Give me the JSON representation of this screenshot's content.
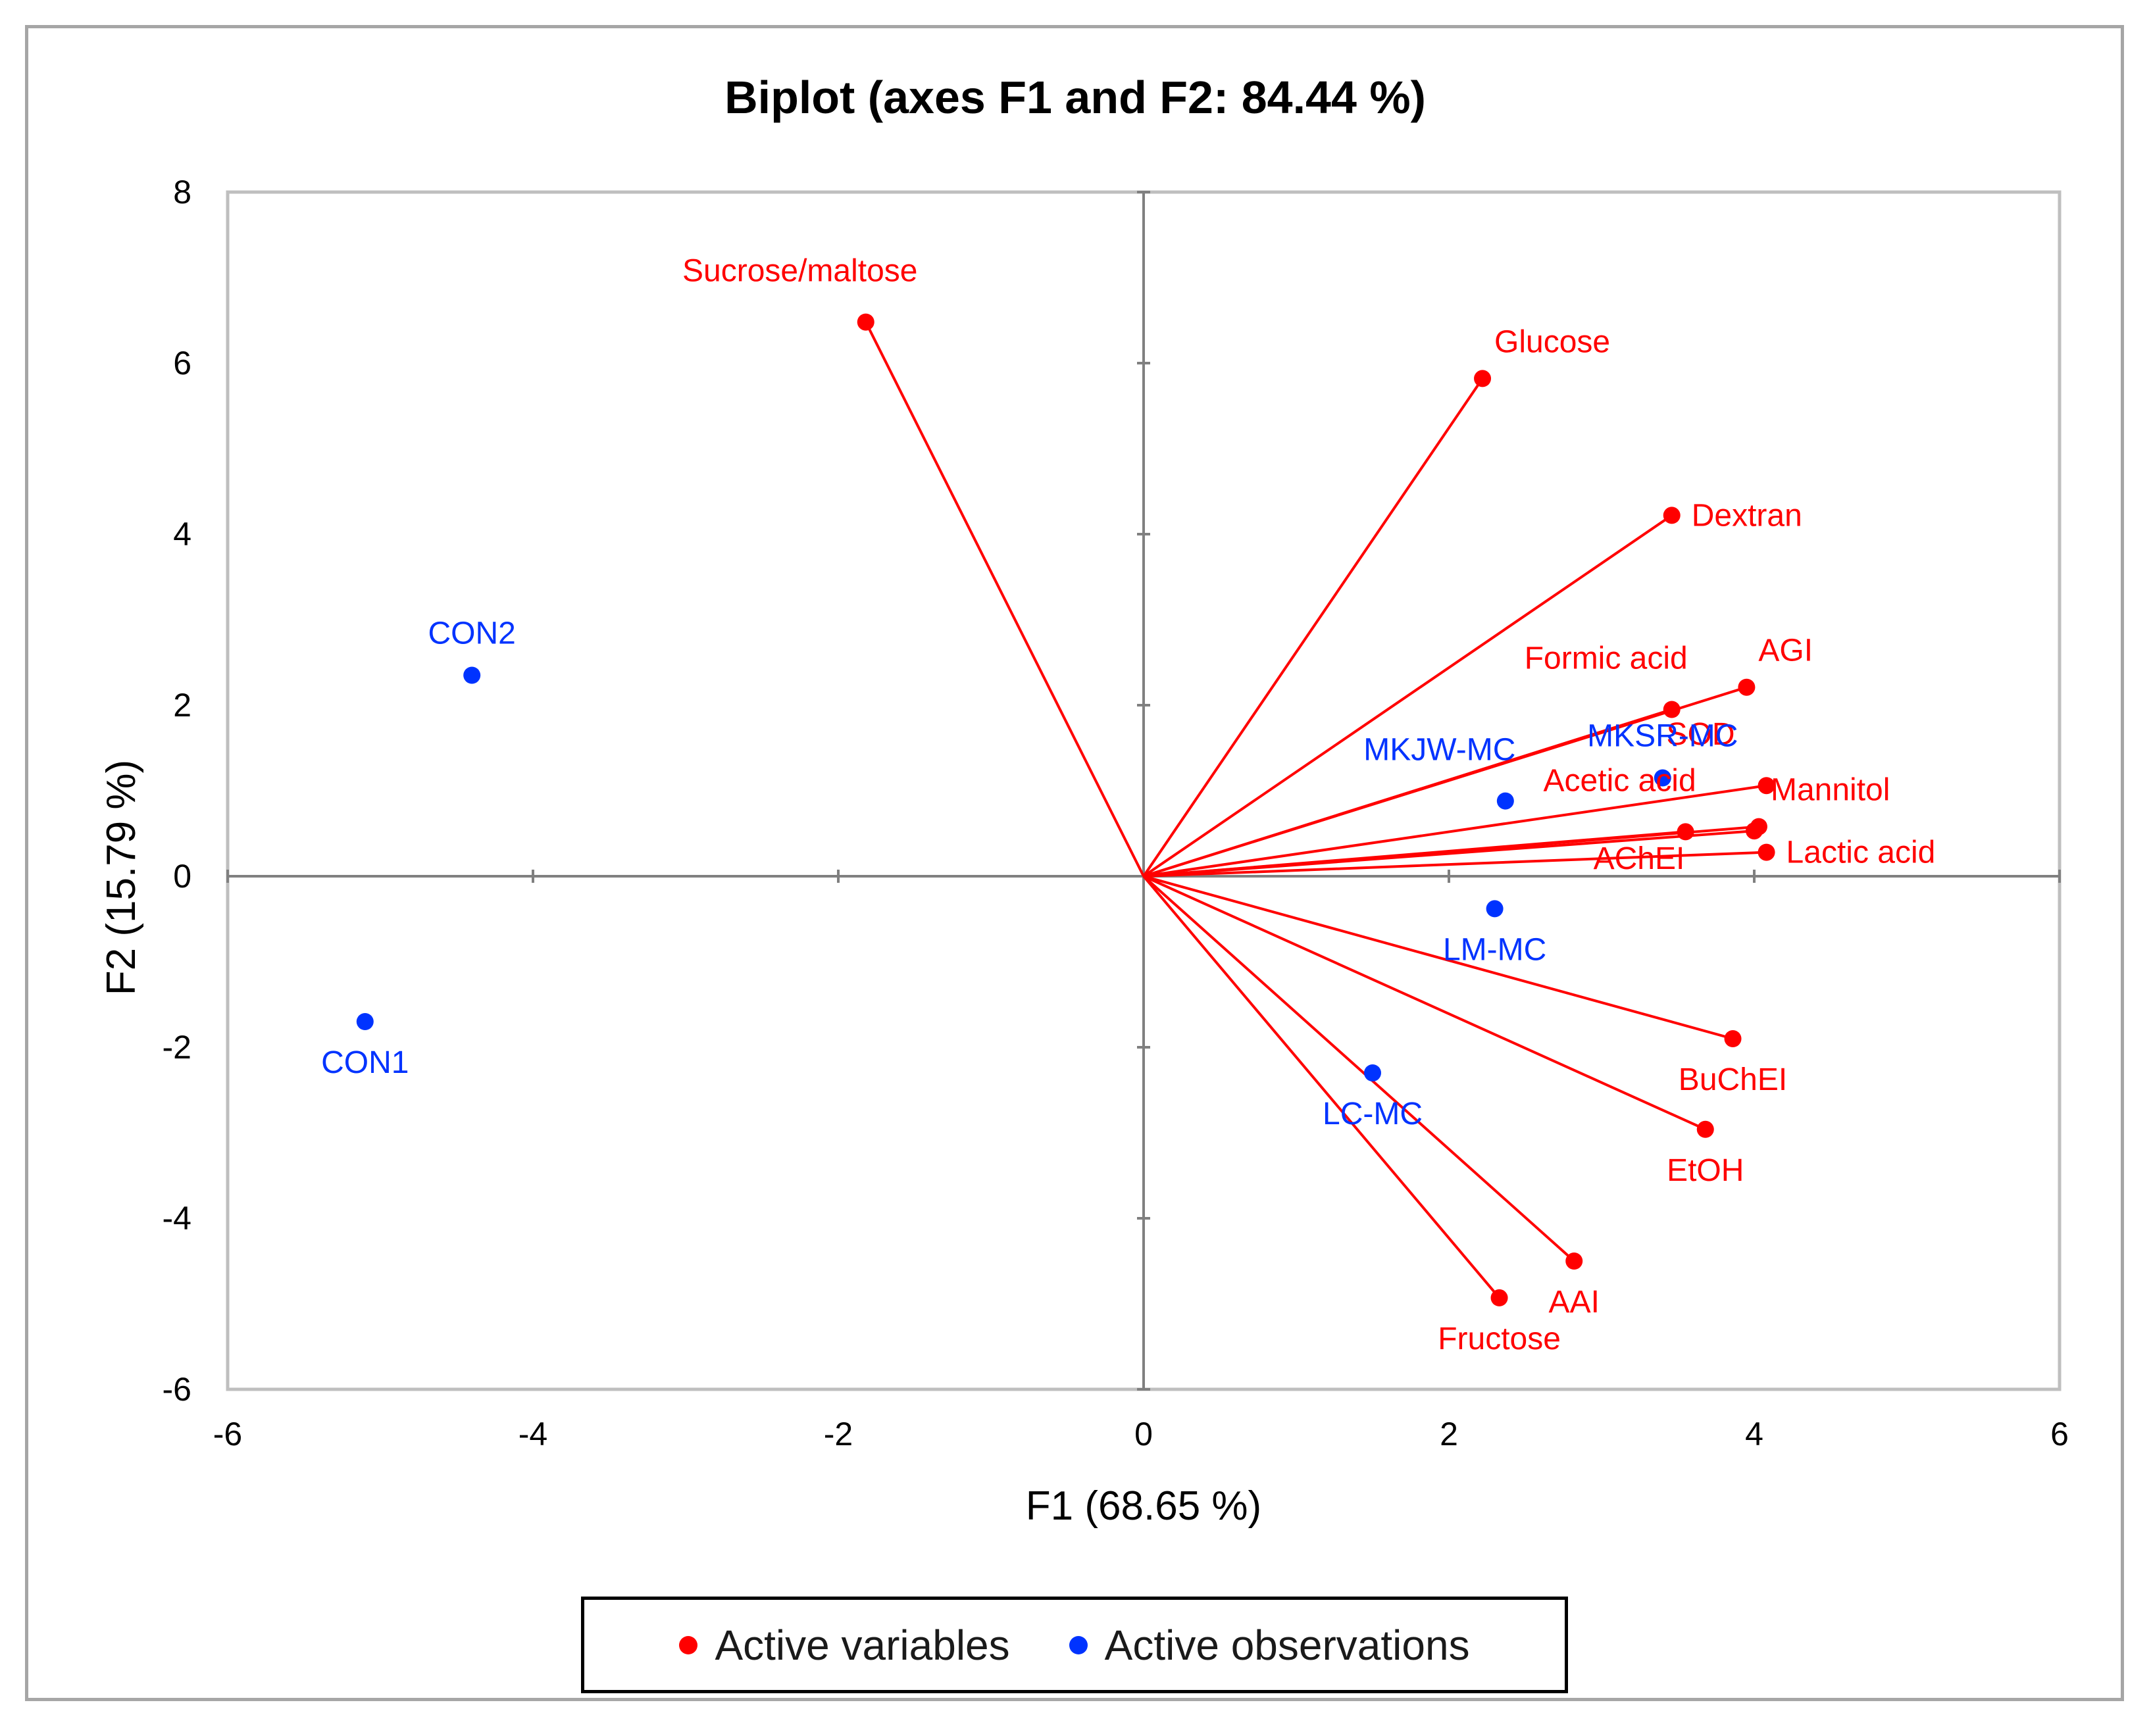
{
  "chart_data": {
    "type": "scatter",
    "title": "Biplot (axes F1 and F2: 84.44 %)",
    "xlabel": "F1 (68.65 %)",
    "ylabel": "F2 (15.79 %)",
    "xlim": [
      -6,
      6
    ],
    "ylim": [
      -6,
      8
    ],
    "xticks": [
      -6,
      -4,
      -2,
      0,
      2,
      4,
      6
    ],
    "yticks": [
      -6,
      -4,
      -2,
      0,
      2,
      4,
      6,
      8
    ],
    "grid": false,
    "series": [
      {
        "name": "Active variables",
        "color": "#ff0000",
        "vectors_from_origin": true,
        "points": [
          {
            "label": "Sucrose/maltose",
            "x": -1.82,
            "y": 6.48,
            "label_pos": "upper-left"
          },
          {
            "label": "Glucose",
            "x": 2.22,
            "y": 5.82,
            "label_pos": "upper-right"
          },
          {
            "label": "Dextran",
            "x": 3.46,
            "y": 4.22,
            "label_pos": "right"
          },
          {
            "label": "AGI",
            "x": 3.95,
            "y": 2.21,
            "label_pos": "upper-right"
          },
          {
            "label": "Formic acid",
            "x": 3.46,
            "y": 1.95,
            "label_pos": "upper-left"
          },
          {
            "label": "SOD",
            "x": 4.08,
            "y": 1.06,
            "label_pos": "upper-left"
          },
          {
            "label": "Mannitol",
            "x": 4.03,
            "y": 0.58,
            "label_pos": "upper-right"
          },
          {
            "label": "Acetic acid",
            "x": 3.55,
            "y": 0.52,
            "label_pos": "upper-left"
          },
          {
            "label": "AChEI",
            "x": 4.0,
            "y": 0.53,
            "label_pos": "below-left"
          },
          {
            "label": "Lactic acid",
            "x": 4.08,
            "y": 0.28,
            "label_pos": "right"
          },
          {
            "label": "BuChEI",
            "x": 3.86,
            "y": -1.9,
            "label_pos": "below"
          },
          {
            "label": "EtOH",
            "x": 3.68,
            "y": -2.96,
            "label_pos": "below"
          },
          {
            "label": "AAI",
            "x": 2.82,
            "y": -4.5,
            "label_pos": "below"
          },
          {
            "label": "Fructose",
            "x": 2.33,
            "y": -4.93,
            "label_pos": "below"
          }
        ]
      },
      {
        "name": "Active observations",
        "color": "#0033ff",
        "vectors_from_origin": false,
        "points": [
          {
            "label": "CON2",
            "x": -4.4,
            "y": 2.35,
            "label_pos": "above"
          },
          {
            "label": "CON1",
            "x": -5.1,
            "y": -1.7,
            "label_pos": "below"
          },
          {
            "label": "MKJW-MC",
            "x": 2.37,
            "y": 0.88,
            "label_pos": "upper-left"
          },
          {
            "label": "MKSR-MC",
            "x": 3.4,
            "y": 1.15,
            "label_pos": "above"
          },
          {
            "label": "LM-MC",
            "x": 2.3,
            "y": -0.38,
            "label_pos": "below"
          },
          {
            "label": "LC-MC",
            "x": 1.5,
            "y": -2.3,
            "label_pos": "below"
          }
        ]
      }
    ],
    "legend": {
      "position": "bottom",
      "entries": [
        "Active variables",
        "Active observations"
      ]
    }
  }
}
